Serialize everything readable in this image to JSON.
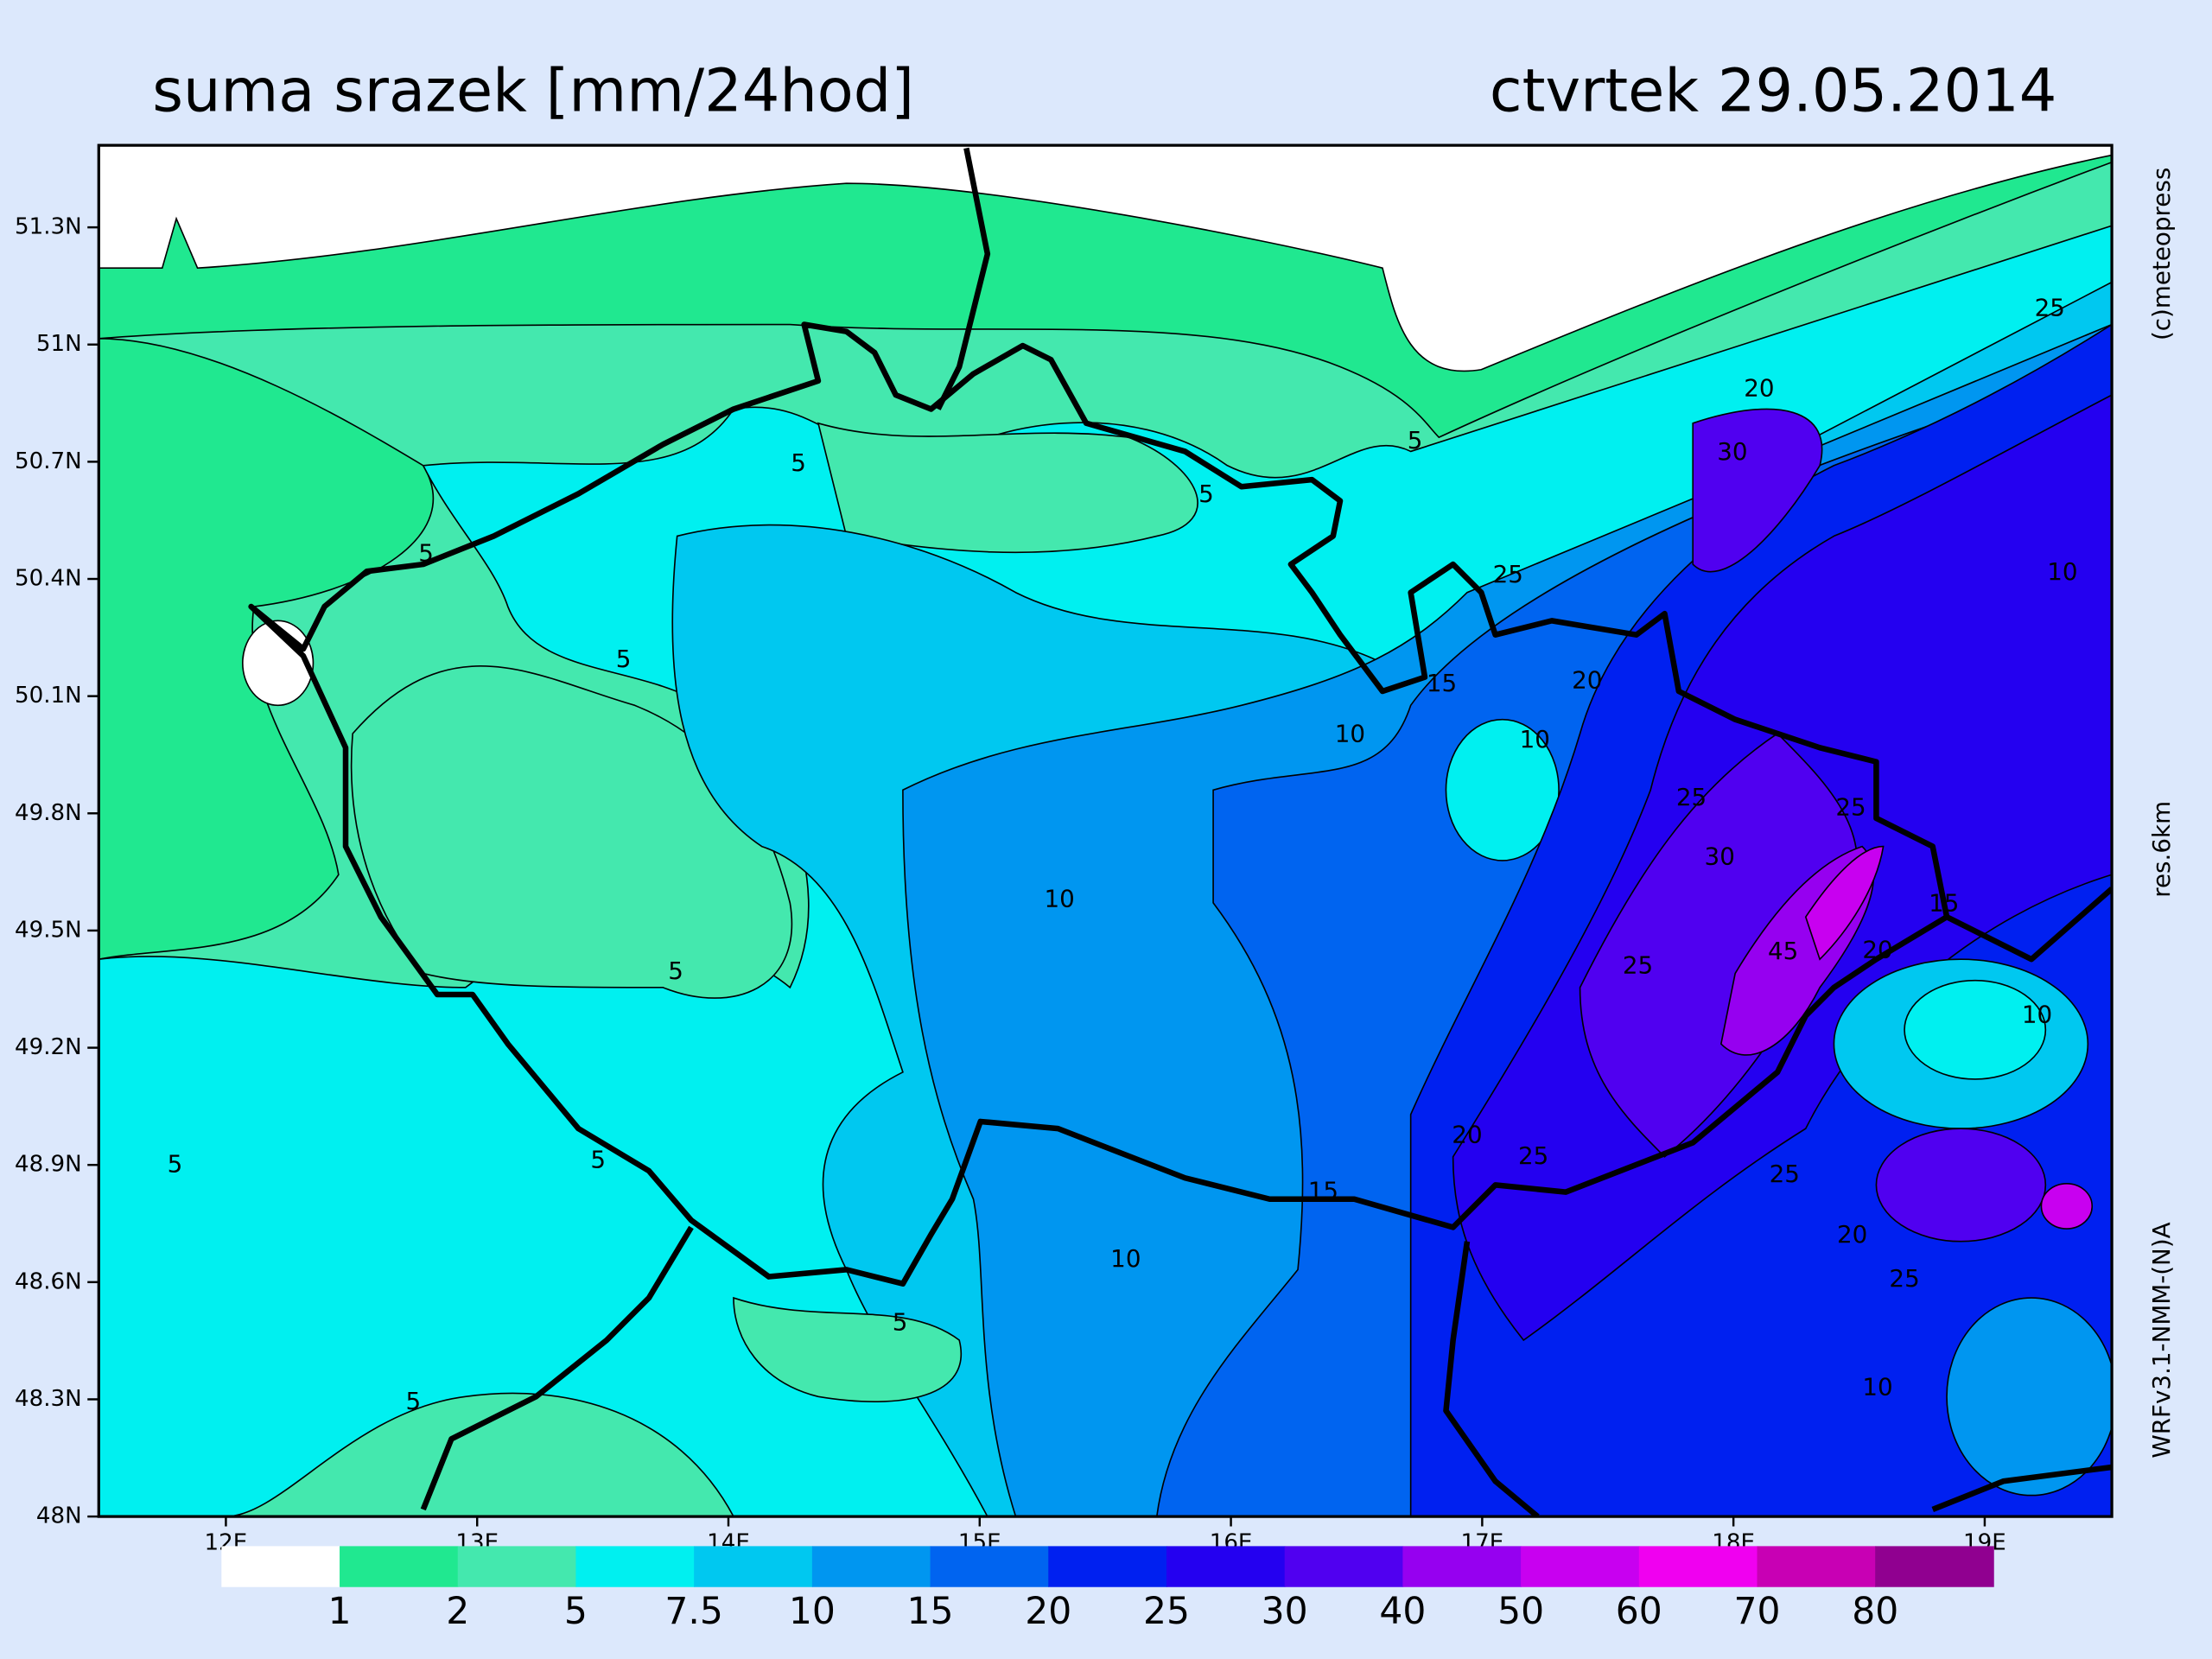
{
  "header": {
    "title": "suma srazek [mm/24hod]",
    "date": "ctvrtek 29.05.2014"
  },
  "map": {
    "lat_range": [
      48,
      51.51
    ],
    "lon_range": [
      11.494,
      19.506
    ],
    "lat_ticks": [
      {
        "value": 51.3,
        "label": "51.3N"
      },
      {
        "value": 51,
        "label": "51N"
      },
      {
        "value": 50.7,
        "label": "50.7N"
      },
      {
        "value": 50.4,
        "label": "50.4N"
      },
      {
        "value": 50.1,
        "label": "50.1N"
      },
      {
        "value": 49.8,
        "label": "49.8N"
      },
      {
        "value": 49.5,
        "label": "49.5N"
      },
      {
        "value": 49.2,
        "label": "49.2N"
      },
      {
        "value": 48.9,
        "label": "48.9N"
      },
      {
        "value": 48.6,
        "label": "48.6N"
      },
      {
        "value": 48.3,
        "label": "48.3N"
      },
      {
        "value": 48,
        "label": "48N"
      }
    ],
    "lon_ticks": [
      {
        "value": 12,
        "label": "12E"
      },
      {
        "value": 13,
        "label": "13E"
      },
      {
        "value": 14,
        "label": "14E"
      },
      {
        "value": 15,
        "label": "15E"
      },
      {
        "value": 16,
        "label": "16E"
      },
      {
        "value": 17,
        "label": "17E"
      },
      {
        "value": 18,
        "label": "18E"
      },
      {
        "value": 19,
        "label": "19E"
      }
    ],
    "contour_labels": [
      "5",
      "20",
      "25",
      "30",
      "10",
      "5",
      "5",
      "5",
      "25",
      "5",
      "15",
      "20",
      "10",
      "10",
      "25",
      "25",
      "30",
      "15",
      "10",
      "45",
      "20",
      "25",
      "5",
      "10",
      "20",
      "25",
      "5",
      "5",
      "25",
      "15",
      "20",
      "10",
      "25",
      "5",
      "10",
      "5"
    ]
  },
  "legend": {
    "levels": [
      1,
      2,
      5,
      7.5,
      10,
      15,
      20,
      25,
      30,
      40,
      50,
      60,
      70,
      80
    ],
    "colors": [
      "#ffffff",
      "#20e890",
      "#44e8ae",
      "#00f0f0",
      "#00c8f0",
      "#0096f0",
      "#0064f0",
      "#0020f0",
      "#2400f0",
      "#5000f0",
      "#9600f0",
      "#c800f0",
      "#f000f0",
      "#c800b4",
      "#900090"
    ]
  },
  "credits": {
    "copyright": "(c)meteopress",
    "resolution": "res.6km",
    "model": "WRFv3.1-NMM-(N)A"
  }
}
